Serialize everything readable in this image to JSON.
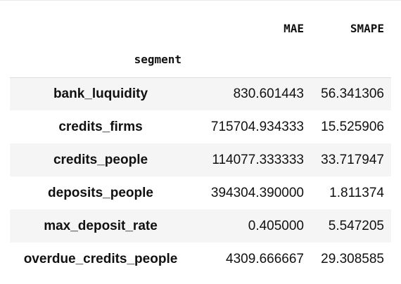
{
  "table": {
    "columns": [
      "MAE",
      "SMAPE"
    ],
    "index_name": "segment",
    "rows": [
      {
        "segment": "bank_luquidity",
        "mae": "830.601443",
        "smape": "56.341306"
      },
      {
        "segment": "credits_firms",
        "mae": "715704.934333",
        "smape": "15.525906"
      },
      {
        "segment": "credits_people",
        "mae": "114077.333333",
        "smape": "33.717947"
      },
      {
        "segment": "deposits_people",
        "mae": "394304.390000",
        "smape": "1.811374"
      },
      {
        "segment": "max_deposit_rate",
        "mae": "0.405000",
        "smape": "5.547205"
      },
      {
        "segment": "overdue_credits_people",
        "mae": "4309.666667",
        "smape": "29.308585"
      }
    ]
  }
}
